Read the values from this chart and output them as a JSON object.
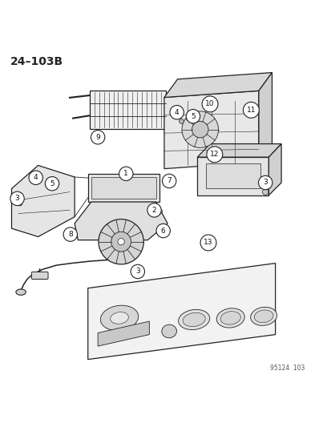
{
  "title": "24–103B",
  "bg_color": "#ffffff",
  "line_color": "#222222",
  "label_color": "#111111",
  "watermark": "95124  103",
  "figsize": [
    4.14,
    5.33
  ],
  "dpi": 100
}
